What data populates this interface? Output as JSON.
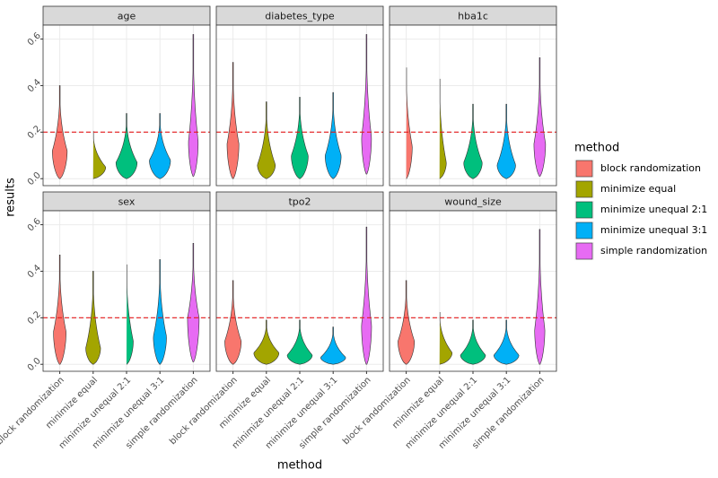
{
  "chart_data": {
    "type": "violin",
    "x_label": "method",
    "y_label": "results",
    "legend_title": "method",
    "categories": [
      "block randomization",
      "minimize equal",
      "minimize unequal 2:1",
      "minimize unequal 3:1",
      "simple randomization"
    ],
    "colors": [
      "#F8766D",
      "#A3A500",
      "#00BF7D",
      "#00B0F6",
      "#E76BF3"
    ],
    "ylim": [
      -0.03,
      0.66
    ],
    "yticks": [
      {
        "value": 0,
        "label": "0.0"
      },
      0.2,
      0.4,
      0.6
    ],
    "grid": true,
    "hline": 0.2,
    "hline_color": "#e41a1c",
    "facets": [
      {
        "title": "age",
        "min": [
          0,
          0,
          0,
          0,
          0.01
        ],
        "max": [
          0.4,
          0.21,
          0.28,
          0.28,
          0.62
        ],
        "mode": [
          0.12,
          0.05,
          0.07,
          0.08,
          0.16
        ]
      },
      {
        "title": "diabetes_type",
        "min": [
          0,
          0,
          0,
          0,
          0.02
        ],
        "max": [
          0.5,
          0.33,
          0.35,
          0.37,
          0.62
        ],
        "mode": [
          0.15,
          0.06,
          0.1,
          0.1,
          0.18
        ]
      },
      {
        "title": "hba1c",
        "min": [
          0,
          0,
          0,
          0,
          0.01
        ],
        "max": [
          0.49,
          0.44,
          0.32,
          0.32,
          0.52
        ],
        "mode": [
          0.14,
          0.07,
          0.07,
          0.06,
          0.15
        ]
      },
      {
        "title": "sex",
        "min": [
          0,
          0,
          0,
          0,
          0.01
        ],
        "max": [
          0.47,
          0.4,
          0.44,
          0.45,
          0.52
        ],
        "mode": [
          0.14,
          0.07,
          0.1,
          0.12,
          0.2
        ]
      },
      {
        "title": "tpo2",
        "min": [
          0,
          0,
          0,
          0,
          0
        ],
        "max": [
          0.36,
          0.19,
          0.19,
          0.16,
          0.59
        ],
        "mode": [
          0.1,
          0.05,
          0.04,
          0.03,
          0.17
        ]
      },
      {
        "title": "wound_size",
        "min": [
          0,
          0,
          0,
          0,
          0
        ],
        "max": [
          0.36,
          0.23,
          0.19,
          0.19,
          0.58
        ],
        "mode": [
          0.1,
          0.05,
          0.04,
          0.04,
          0.15
        ]
      }
    ]
  }
}
